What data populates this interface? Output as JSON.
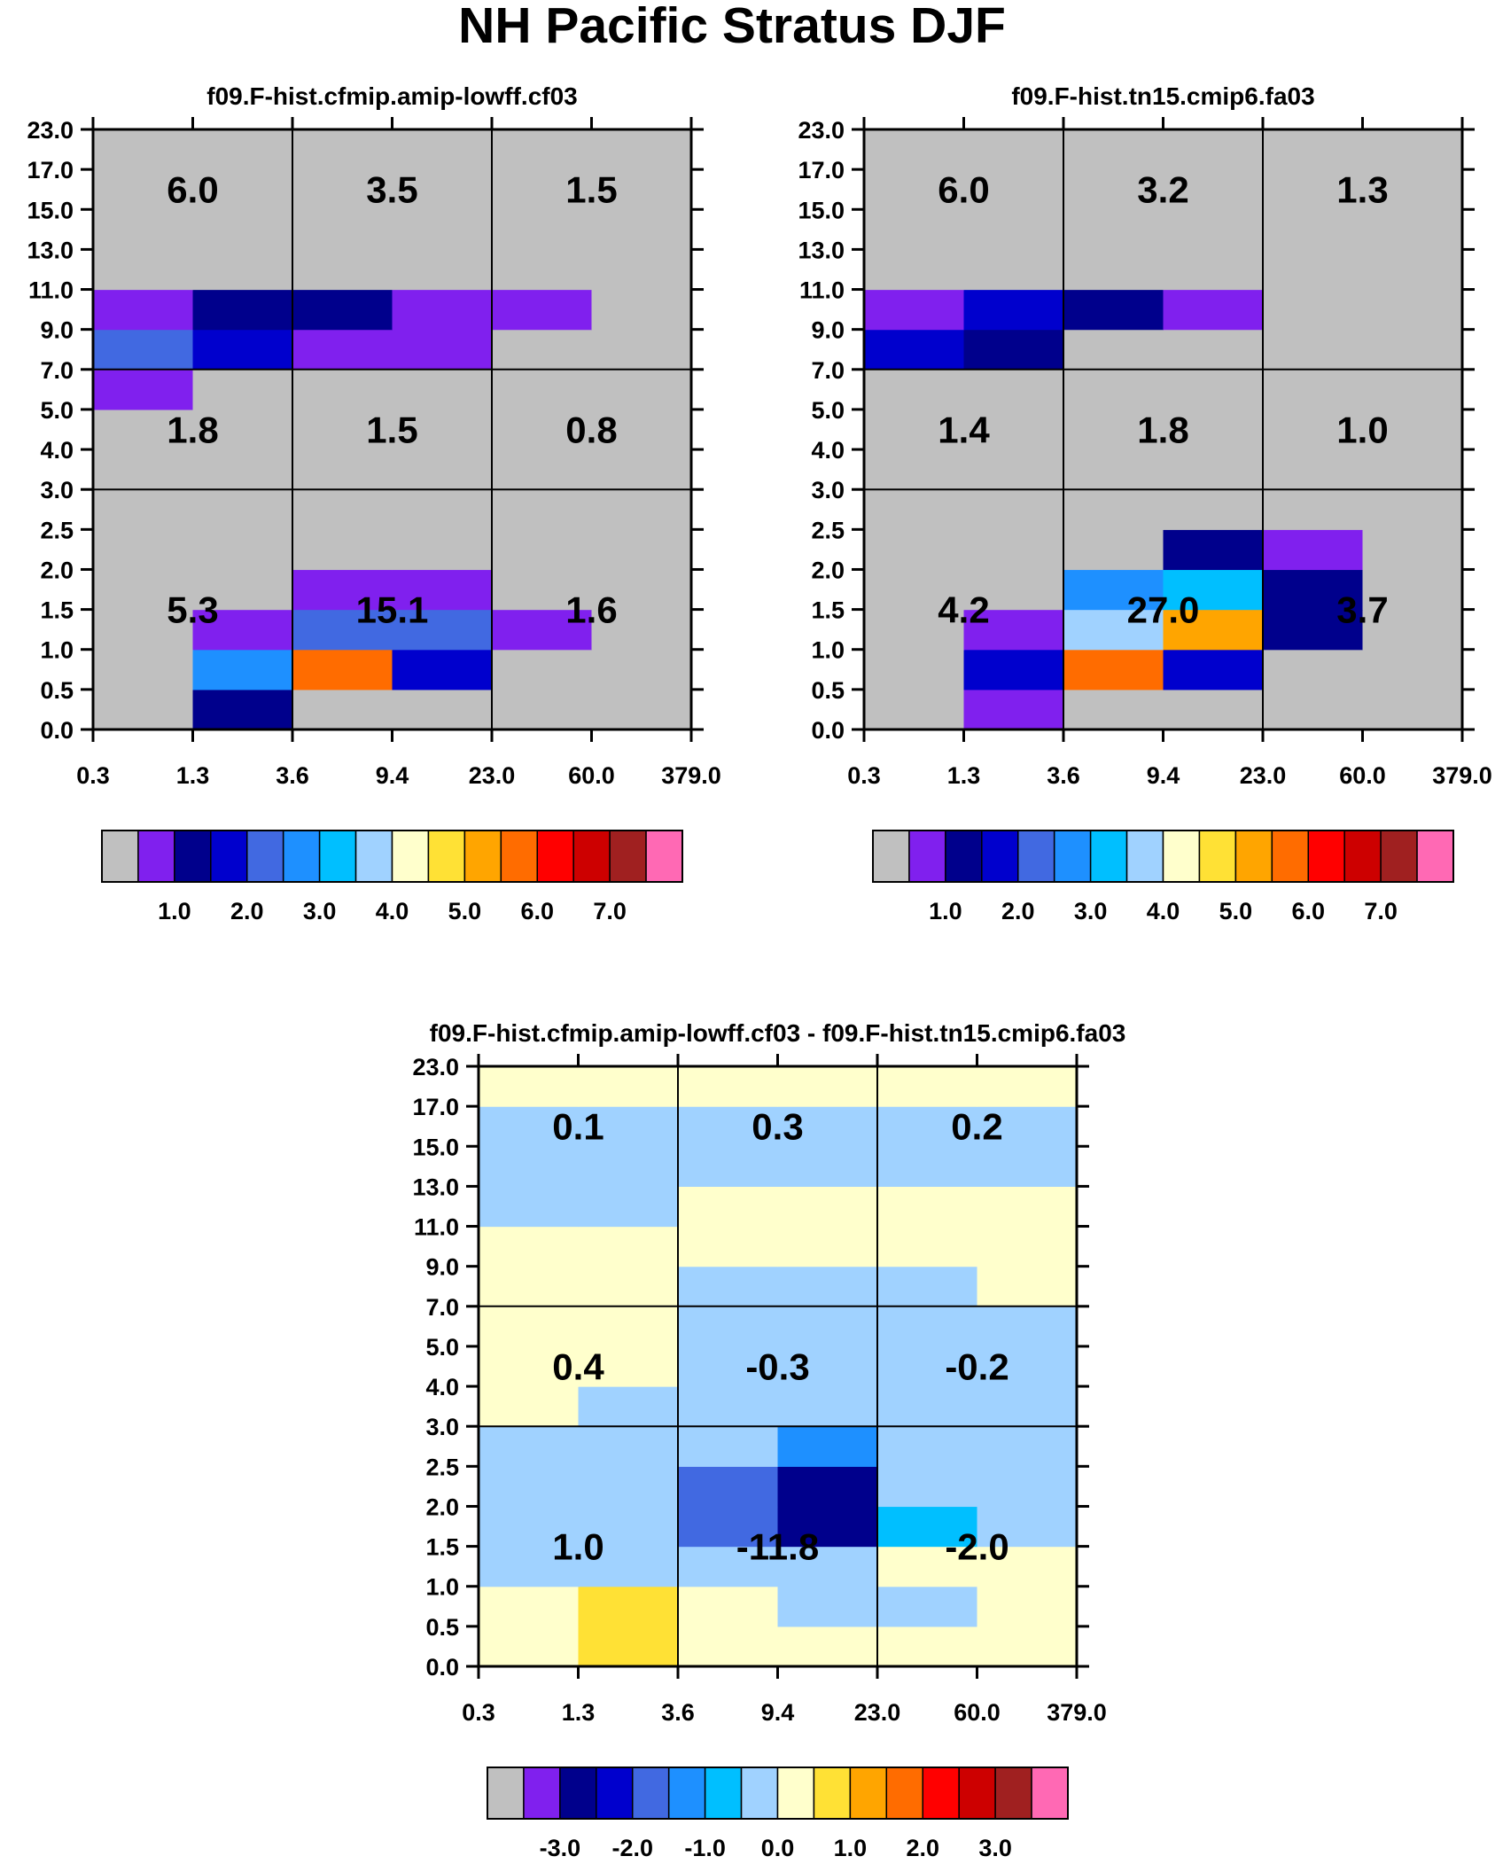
{
  "title": "NH Pacific Stratus DJF",
  "chart_data": [
    {
      "type": "heatmap",
      "title": "f09.F-hist.cfmip.amip-lowff.cf03",
      "x_ticks": [
        "0.3",
        "1.3",
        "3.6",
        "9.4",
        "23.0",
        "60.0",
        "379.0"
      ],
      "y_ticks": [
        "0.0",
        "0.5",
        "1.0",
        "1.5",
        "2.0",
        "2.5",
        "3.0",
        "4.0",
        "5.0",
        "7.0",
        "9.0",
        "11.0",
        "13.0",
        "15.0",
        "17.0",
        "23.0"
      ],
      "grid": [
        [
          0,
          2,
          0,
          0,
          0,
          0
        ],
        [
          0,
          5,
          11,
          3,
          0,
          0
        ],
        [
          0,
          1,
          4,
          4,
          1,
          0
        ],
        [
          0,
          0,
          1,
          1,
          0,
          0
        ],
        [
          0,
          0,
          0,
          0,
          0,
          0
        ],
        [
          0,
          0,
          0,
          0,
          0,
          0
        ],
        [
          0,
          0,
          0,
          0,
          0,
          0
        ],
        [
          0,
          0,
          0,
          0,
          0,
          0
        ],
        [
          1,
          0,
          0,
          0,
          0,
          0
        ],
        [
          4,
          3,
          1,
          1,
          0,
          0
        ],
        [
          1,
          2,
          2,
          1,
          1,
          0
        ],
        [
          0,
          0,
          0,
          0,
          0,
          0
        ],
        [
          0,
          0,
          0,
          0,
          0,
          0
        ],
        [
          0,
          0,
          0,
          0,
          0,
          0
        ],
        [
          0,
          0,
          0,
          0,
          0,
          0
        ]
      ],
      "block_labels": [
        {
          "col": 0,
          "row": 0,
          "text": "6.0"
        },
        {
          "col": 1,
          "row": 0,
          "text": "3.5"
        },
        {
          "col": 2,
          "row": 0,
          "text": "1.5"
        },
        {
          "col": 0,
          "row": 1,
          "text": "1.8"
        },
        {
          "col": 1,
          "row": 1,
          "text": "1.5"
        },
        {
          "col": 2,
          "row": 1,
          "text": "0.8"
        },
        {
          "col": 0,
          "row": 2,
          "text": "5.3"
        },
        {
          "col": 1,
          "row": 2,
          "text": "15.1"
        },
        {
          "col": 2,
          "row": 2,
          "text": "1.6"
        }
      ],
      "colorbar": {
        "colors": [
          "#c0c0c0",
          "#8020ee",
          "#00008c",
          "#0000cd",
          "#4169e1",
          "#1e90ff",
          "#00bfff",
          "#a0d2ff",
          "#ffffcc",
          "#ffe135",
          "#ffa500",
          "#ff6c00",
          "#ff0000",
          "#cd0000",
          "#a02020",
          "#ff69b4"
        ],
        "labels": [
          "1.0",
          "2.0",
          "3.0",
          "4.0",
          "5.0",
          "6.0",
          "7.0"
        ]
      }
    },
    {
      "type": "heatmap",
      "title": "f09.F-hist.tn15.cmip6.fa03",
      "x_ticks": [
        "0.3",
        "1.3",
        "3.6",
        "9.4",
        "23.0",
        "60.0",
        "379.0"
      ],
      "y_ticks": [
        "0.0",
        "0.5",
        "1.0",
        "1.5",
        "2.0",
        "2.5",
        "3.0",
        "4.0",
        "5.0",
        "7.0",
        "9.0",
        "11.0",
        "13.0",
        "15.0",
        "17.0",
        "23.0"
      ],
      "grid": [
        [
          0,
          1,
          0,
          0,
          0,
          0
        ],
        [
          0,
          3,
          11,
          3,
          0,
          0
        ],
        [
          0,
          1,
          7,
          10,
          2,
          0
        ],
        [
          0,
          0,
          5,
          6,
          2,
          0
        ],
        [
          0,
          0,
          0,
          2,
          1,
          0
        ],
        [
          0,
          0,
          0,
          0,
          0,
          0
        ],
        [
          0,
          0,
          0,
          0,
          0,
          0
        ],
        [
          0,
          0,
          0,
          0,
          0,
          0
        ],
        [
          0,
          0,
          0,
          0,
          0,
          0
        ],
        [
          3,
          2,
          0,
          0,
          0,
          0
        ],
        [
          1,
          3,
          2,
          1,
          0,
          0
        ],
        [
          0,
          0,
          0,
          0,
          0,
          0
        ],
        [
          0,
          0,
          0,
          0,
          0,
          0
        ],
        [
          0,
          0,
          0,
          0,
          0,
          0
        ],
        [
          0,
          0,
          0,
          0,
          0,
          0
        ]
      ],
      "block_labels": [
        {
          "col": 0,
          "row": 0,
          "text": "6.0"
        },
        {
          "col": 1,
          "row": 0,
          "text": "3.2"
        },
        {
          "col": 2,
          "row": 0,
          "text": "1.3"
        },
        {
          "col": 0,
          "row": 1,
          "text": "1.4"
        },
        {
          "col": 1,
          "row": 1,
          "text": "1.8"
        },
        {
          "col": 2,
          "row": 1,
          "text": "1.0"
        },
        {
          "col": 0,
          "row": 2,
          "text": "4.2"
        },
        {
          "col": 1,
          "row": 2,
          "text": "27.0"
        },
        {
          "col": 2,
          "row": 2,
          "text": "3.7"
        }
      ],
      "colorbar": {
        "colors": [
          "#c0c0c0",
          "#8020ee",
          "#00008c",
          "#0000cd",
          "#4169e1",
          "#1e90ff",
          "#00bfff",
          "#a0d2ff",
          "#ffffcc",
          "#ffe135",
          "#ffa500",
          "#ff6c00",
          "#ff0000",
          "#cd0000",
          "#a02020",
          "#ff69b4"
        ],
        "labels": [
          "1.0",
          "2.0",
          "3.0",
          "4.0",
          "5.0",
          "6.0",
          "7.0"
        ]
      }
    },
    {
      "type": "heatmap",
      "title": "f09.F-hist.cfmip.amip-lowff.cf03 - f09.F-hist.tn15.cmip6.fa03",
      "x_ticks": [
        "0.3",
        "1.3",
        "3.6",
        "9.4",
        "23.0",
        "60.0",
        "379.0"
      ],
      "y_ticks": [
        "0.0",
        "0.5",
        "1.0",
        "1.5",
        "2.0",
        "2.5",
        "3.0",
        "4.0",
        "5.0",
        "7.0",
        "9.0",
        "11.0",
        "13.0",
        "15.0",
        "17.0",
        "23.0"
      ],
      "grid": [
        [
          0.0,
          0.8,
          0.0,
          0.0,
          0.0,
          0.0
        ],
        [
          0.0,
          0.8,
          0.0,
          -0.2,
          -0.2,
          0.0
        ],
        [
          -0.2,
          -0.2,
          -0.2,
          -0.2,
          0.0,
          0.0
        ],
        [
          -0.2,
          -0.2,
          -1.5,
          -2.5,
          -0.6,
          -0.2
        ],
        [
          -0.2,
          -0.2,
          -1.5,
          -2.5,
          -0.2,
          -0.2
        ],
        [
          -0.2,
          -0.2,
          -0.2,
          -1.0,
          -0.2,
          -0.2
        ],
        [
          0.0,
          -0.2,
          -0.2,
          -0.2,
          -0.2,
          -0.2
        ],
        [
          0.0,
          0.0,
          -0.2,
          -0.2,
          -0.2,
          -0.2
        ],
        [
          0.0,
          0.0,
          -0.2,
          -0.2,
          -0.2,
          -0.2
        ],
        [
          0.0,
          0.0,
          -0.2,
          -0.2,
          -0.2,
          0.0
        ],
        [
          0.0,
          0.0,
          0.0,
          0.0,
          0.0,
          0.0
        ],
        [
          -0.2,
          -0.2,
          0.0,
          0.0,
          0.0,
          0.0
        ],
        [
          -0.2,
          -0.2,
          -0.2,
          -0.2,
          -0.2,
          -0.2
        ],
        [
          -0.2,
          -0.2,
          -0.2,
          -0.2,
          -0.2,
          -0.2
        ],
        [
          0.0,
          0.0,
          0.0,
          0.0,
          0.0,
          0.0
        ]
      ],
      "block_labels": [
        {
          "col": 0,
          "row": 0,
          "text": "0.1"
        },
        {
          "col": 1,
          "row": 0,
          "text": "0.3"
        },
        {
          "col": 2,
          "row": 0,
          "text": "0.2"
        },
        {
          "col": 0,
          "row": 1,
          "text": "0.4"
        },
        {
          "col": 1,
          "row": 1,
          "text": "-0.3"
        },
        {
          "col": 2,
          "row": 1,
          "text": "-0.2"
        },
        {
          "col": 0,
          "row": 2,
          "text": "1.0"
        },
        {
          "col": 1,
          "row": 2,
          "text": "-11.8"
        },
        {
          "col": 2,
          "row": 2,
          "text": "-2.0"
        }
      ],
      "colorbar": {
        "colors": [
          "#c0c0c0",
          "#8020ee",
          "#00008c",
          "#0000cd",
          "#4169e1",
          "#1e90ff",
          "#00bfff",
          "#a0d2ff",
          "#ffffcc",
          "#ffe135",
          "#ffa500",
          "#ff6c00",
          "#ff0000",
          "#cd0000",
          "#a02020",
          "#ff69b4"
        ],
        "labels": [
          "-3.0",
          "-2.0",
          "-1.0",
          "0.0",
          "1.0",
          "2.0",
          "3.0"
        ]
      }
    }
  ]
}
